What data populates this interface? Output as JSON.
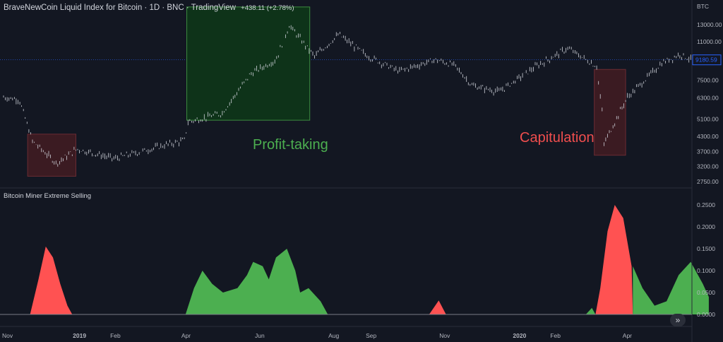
{
  "header": {
    "title": "BraveNewCoin Liquid Index for Bitcoin · 1D · BNC · TradingView",
    "change": "+438.11 (+2.78%)"
  },
  "price_axis": {
    "unit": "BTC",
    "ticks": [
      "13000.00",
      "11000.00",
      "9180.59",
      "7500.00",
      "6300.00",
      "5100.00",
      "4300.00",
      "3700.00",
      "3200.00",
      "2750.00"
    ],
    "current_label": "9180.59"
  },
  "indicator": {
    "title": "Bitcoin Miner Extreme Selling",
    "ticks": [
      "0.2500",
      "0.2000",
      "0.1500",
      "0.1000",
      "0.0500",
      "0.0000"
    ]
  },
  "time_axis": {
    "labels": [
      "Nov",
      "2019",
      "Feb",
      "Apr",
      "Jun",
      "Aug",
      "Sep",
      "Nov",
      "2020",
      "Feb",
      "Apr"
    ]
  },
  "annotations": {
    "profit_taking": "Profit-taking",
    "capitulation": "Capitulation"
  },
  "colors": {
    "background": "#131722",
    "selling_red": "#ff5252",
    "selling_green": "#4caf50",
    "profit_box": "#1b5e20",
    "capitulation_box": "#5d1f23"
  },
  "nav_icon": "chevron-double-right-icon",
  "chart_data": [
    {
      "type": "line",
      "title": "BraveNewCoin Liquid Index for Bitcoin · 1D · BNC · TradingView",
      "scale": "log",
      "ylim": [
        2500,
        15500
      ],
      "x": [
        "2018-11-01",
        "2018-11-14",
        "2018-11-25",
        "2018-12-15",
        "2019-01-01",
        "2019-02-01",
        "2019-03-15",
        "2019-04-01",
        "2019-04-02",
        "2019-05-01",
        "2019-05-25",
        "2019-06-15",
        "2019-06-26",
        "2019-07-17",
        "2019-08-06",
        "2019-08-29",
        "2019-09-25",
        "2019-10-25",
        "2019-11-10",
        "2019-11-25",
        "2019-12-17",
        "2020-01-15",
        "2020-02-12",
        "2020-03-07",
        "2020-03-12",
        "2020-03-13",
        "2020-04-01",
        "2020-04-30",
        "2020-05-15",
        "2020-05-25"
      ],
      "y": [
        6350,
        6200,
        4100,
        3300,
        3800,
        3450,
        3950,
        4150,
        4950,
        5400,
        8000,
        9200,
        12900,
        9500,
        11800,
        9600,
        8200,
        9200,
        8700,
        7100,
        6700,
        8500,
        10300,
        8600,
        5200,
        4000,
        6300,
        8900,
        9700,
        9180
      ]
    },
    {
      "type": "area",
      "title": "Bitcoin Miner Extreme Selling",
      "ylim": [
        0,
        0.27
      ],
      "series": [
        {
          "values": [
            {
              "x": "2018-11-23",
              "y": 0
            },
            {
              "x": "2018-11-30",
              "y": 0.08
            },
            {
              "x": "2018-12-06",
              "y": 0.155
            },
            {
              "x": "2018-12-12",
              "y": 0.13
            },
            {
              "x": "2018-12-18",
              "y": 0.07
            },
            {
              "x": "2018-12-24",
              "y": 0.02
            },
            {
              "x": "2018-12-28",
              "y": 0
            },
            {
              "x": "2019-10-20",
              "y": 0
            },
            {
              "x": "2019-10-28",
              "y": 0.032
            },
            {
              "x": "2019-11-03",
              "y": 0
            },
            {
              "x": "2020-03-06",
              "y": 0
            },
            {
              "x": "2020-03-10",
              "y": 0.06
            },
            {
              "x": "2020-03-16",
              "y": 0.19
            },
            {
              "x": "2020-03-22",
              "y": 0.25
            },
            {
              "x": "2020-03-29",
              "y": 0.22
            },
            {
              "x": "2020-04-05",
              "y": 0.11
            },
            {
              "x": "2020-04-06",
              "y": 0
            }
          ]
        },
        {
          "values": [
            {
              "x": "2019-04-01",
              "y": 0
            },
            {
              "x": "2019-04-08",
              "y": 0.06
            },
            {
              "x": "2019-04-15",
              "y": 0.1
            },
            {
              "x": "2019-04-23",
              "y": 0.07
            },
            {
              "x": "2019-05-02",
              "y": 0.05
            },
            {
              "x": "2019-05-14",
              "y": 0.06
            },
            {
              "x": "2019-05-22",
              "y": 0.09
            },
            {
              "x": "2019-05-27",
              "y": 0.12
            },
            {
              "x": "2019-06-04",
              "y": 0.11
            },
            {
              "x": "2019-06-09",
              "y": 0.08
            },
            {
              "x": "2019-06-15",
              "y": 0.13
            },
            {
              "x": "2019-06-24",
              "y": 0.15
            },
            {
              "x": "2019-07-01",
              "y": 0.1
            },
            {
              "x": "2019-07-05",
              "y": 0.05
            },
            {
              "x": "2019-07-12",
              "y": 0.06
            },
            {
              "x": "2019-07-22",
              "y": 0.03
            },
            {
              "x": "2019-07-28",
              "y": 0
            },
            {
              "x": "2020-02-27",
              "y": 0
            },
            {
              "x": "2020-03-03",
              "y": 0.015
            },
            {
              "x": "2020-03-06",
              "y": 0
            },
            {
              "x": "2020-04-06",
              "y": 0
            },
            {
              "x": "2020-04-06",
              "y": 0.11
            },
            {
              "x": "2020-04-14",
              "y": 0.06
            },
            {
              "x": "2020-04-24",
              "y": 0.02
            },
            {
              "x": "2020-05-04",
              "y": 0.03
            },
            {
              "x": "2020-05-14",
              "y": 0.09
            },
            {
              "x": "2020-05-24",
              "y": 0.12
            },
            {
              "x": "2020-06-03",
              "y": 0.07
            },
            {
              "x": "2020-06-08",
              "y": 0.04
            }
          ]
        }
      ]
    }
  ]
}
